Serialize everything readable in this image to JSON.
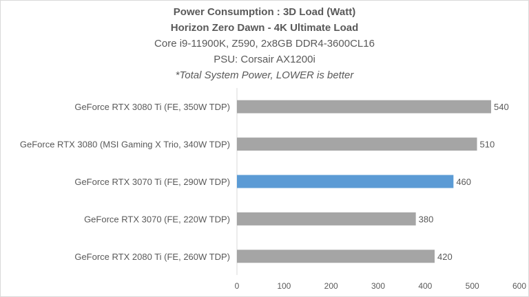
{
  "chart_data": {
    "type": "bar",
    "orientation": "horizontal",
    "title": "Power Consumption : 3D Load (Watt)",
    "subtitle": "Horizon Zero Dawn - 4K Ultimate Load",
    "subtitle2": "Core i9-11900K, Z590, 2x8GB DDR4-3600CL16",
    "subtitle3": "PSU: Corsair AX1200i",
    "note": "*Total System Power, LOWER is better",
    "categories": [
      "GeForce RTX 3080 Ti (FE, 350W TDP)",
      "GeForce RTX 3080 (MSI Gaming X Trio, 340W TDP)",
      "GeForce RTX 3070 Ti (FE, 290W TDP)",
      "GeForce RTX 3070 (FE, 220W TDP)",
      "GeForce RTX 2080 Ti (FE, 260W TDP)"
    ],
    "values": [
      540,
      510,
      460,
      380,
      420
    ],
    "highlight_index": 2,
    "colors": {
      "default": "#a5a5a5",
      "highlight": "#5b9bd5"
    },
    "xlim": [
      0,
      600
    ],
    "xticks": [
      0,
      100,
      200,
      300,
      400,
      500,
      600
    ],
    "grid": false,
    "data_labels": true
  }
}
